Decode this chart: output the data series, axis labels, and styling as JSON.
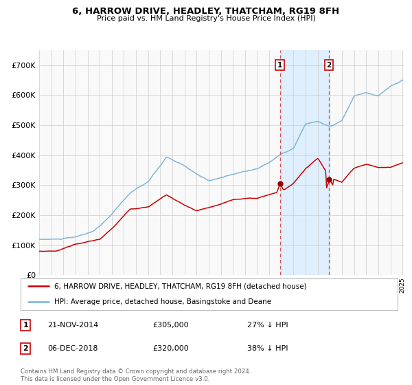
{
  "title": "6, HARROW DRIVE, HEADLEY, THATCHAM, RG19 8FH",
  "subtitle": "Price paid vs. HM Land Registry's House Price Index (HPI)",
  "sale1_date": "21-NOV-2014",
  "sale1_price": 305000,
  "sale2_date": "06-DEC-2018",
  "sale2_price": 320000,
  "sale1_pct": "27% ↓ HPI",
  "sale2_pct": "38% ↓ HPI",
  "legend_property": "6, HARROW DRIVE, HEADLEY, THATCHAM, RG19 8FH (detached house)",
  "legend_hpi": "HPI: Average price, detached house, Basingstoke and Deane",
  "footer": "Contains HM Land Registry data © Crown copyright and database right 2024.\nThis data is licensed under the Open Government Licence v3.0.",
  "hpi_color": "#7ab3d4",
  "property_color": "#cc0000",
  "sale_dot_color": "#990000",
  "shade_color": "#ddeeff",
  "dashed_line_color": "#cc4444",
  "grid_color": "#cccccc",
  "background_color": "#ffffff",
  "plot_bg_color": "#f9f9f9",
  "ylim": [
    0,
    750000
  ],
  "yticks": [
    0,
    100000,
    200000,
    300000,
    400000,
    500000,
    600000,
    700000
  ],
  "ytick_labels": [
    "£0",
    "£100K",
    "£200K",
    "£300K",
    "£400K",
    "£500K",
    "£600K",
    "£700K"
  ],
  "year_start": 1995,
  "year_end": 2025,
  "sale1_year": 2014.88,
  "sale2_year": 2018.92,
  "hpi_keypoints_t": [
    0,
    0.05,
    0.1,
    0.15,
    0.167,
    0.2,
    0.25,
    0.3,
    0.35,
    0.4,
    0.433,
    0.467,
    0.5,
    0.533,
    0.567,
    0.6,
    0.633,
    0.667,
    0.7,
    0.733,
    0.767,
    0.8,
    0.833,
    0.867,
    0.9,
    0.933,
    0.967,
    1.0
  ],
  "hpi_keypoints_v": [
    120000,
    120000,
    125000,
    145000,
    160000,
    200000,
    270000,
    310000,
    390000,
    360000,
    330000,
    310000,
    320000,
    330000,
    340000,
    350000,
    370000,
    400000,
    420000,
    500000,
    510000,
    490000,
    510000,
    590000,
    600000,
    590000,
    620000,
    640000
  ],
  "prop_keypoints_t": [
    0,
    0.05,
    0.1,
    0.167,
    0.2,
    0.25,
    0.3,
    0.35,
    0.4,
    0.433,
    0.467,
    0.5,
    0.533,
    0.567,
    0.6,
    0.633,
    0.667,
    0.7,
    0.733,
    0.767,
    0.8,
    0.833,
    0.867,
    0.9,
    0.933,
    0.967,
    1.0
  ],
  "prop_keypoints_v": [
    80000,
    82000,
    105000,
    120000,
    155000,
    220000,
    230000,
    270000,
    235000,
    215000,
    225000,
    235000,
    250000,
    255000,
    255000,
    268000,
    280000,
    305000,
    355000,
    390000,
    325000,
    310000,
    355000,
    365000,
    355000,
    355000,
    370000
  ]
}
